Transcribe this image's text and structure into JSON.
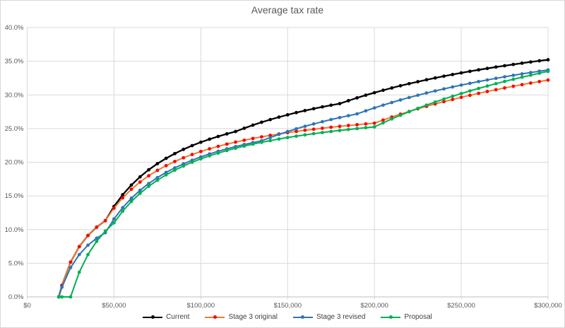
{
  "title": "Average tax rate",
  "chart_data": {
    "type": "line",
    "title": "Average tax rate",
    "xlabel": "",
    "ylabel": "",
    "xlim": [
      0,
      300000
    ],
    "ylim": [
      0,
      40
    ],
    "grid": true,
    "legend_position": "bottom",
    "y_tick_values": [
      0,
      5,
      10,
      15,
      20,
      25,
      30,
      35,
      40
    ],
    "y_ticks": [
      "0.0%",
      "5.0%",
      "10.0%",
      "15.0%",
      "20.0%",
      "25.0%",
      "30.0%",
      "35.0%",
      "40.0%"
    ],
    "x_tick_values": [
      0,
      50000,
      100000,
      150000,
      200000,
      250000,
      300000
    ],
    "x_ticks": [
      "$0",
      "$50,000",
      "$100,000",
      "$150,000",
      "$200,000",
      "$250,000",
      "$300,000"
    ],
    "colors": {
      "grid": "#d9d9d9",
      "axis": "#bfbfbf",
      "tick_text": "#595959",
      "title_text": "#595959"
    },
    "x": [
      18200,
      20000,
      25000,
      30000,
      35000,
      40000,
      45000,
      50000,
      55000,
      60000,
      65000,
      70000,
      75000,
      80000,
      85000,
      90000,
      95000,
      100000,
      105000,
      110000,
      115000,
      120000,
      125000,
      130000,
      135000,
      140000,
      145000,
      150000,
      155000,
      160000,
      165000,
      170000,
      175000,
      180000,
      185000,
      190000,
      195000,
      200000,
      205000,
      210000,
      215000,
      220000,
      225000,
      230000,
      235000,
      240000,
      245000,
      250000,
      255000,
      260000,
      265000,
      270000,
      275000,
      280000,
      285000,
      290000,
      295000,
      300000
    ],
    "series": [
      {
        "name": "Current",
        "line_color": "#000000",
        "marker_color": "#000000",
        "values": [
          0,
          1.71,
          5.17,
          7.47,
          9.12,
          10.36,
          11.32,
          13.43,
          15.17,
          16.61,
          17.83,
          18.88,
          19.79,
          20.58,
          21.28,
          21.91,
          22.47,
          22.97,
          23.42,
          23.83,
          24.21,
          24.56,
          25.05,
          25.51,
          25.94,
          26.33,
          26.7,
          27.04,
          27.37,
          27.67,
          27.95,
          28.22,
          28.47,
          28.7,
          29.14,
          29.56,
          29.96,
          30.33,
          30.69,
          31.03,
          31.36,
          31.67,
          31.96,
          32.25,
          32.52,
          32.78,
          33.03,
          33.27,
          33.5,
          33.72,
          33.93,
          34.14,
          34.33,
          34.52,
          34.71,
          34.89,
          35.06,
          35.22
        ]
      },
      {
        "name": "Stage 3 original",
        "line_color": "#ED7D31",
        "marker_color": "#FF0000",
        "values": [
          0,
          1.71,
          5.17,
          7.47,
          9.12,
          10.36,
          11.32,
          13.18,
          14.71,
          15.99,
          17.06,
          17.99,
          18.79,
          19.49,
          20.11,
          20.66,
          21.15,
          21.59,
          21.99,
          22.36,
          22.69,
          22.99,
          23.27,
          23.53,
          23.77,
          23.99,
          24.2,
          24.39,
          24.58,
          24.75,
          24.9,
          25.05,
          25.2,
          25.33,
          25.46,
          25.57,
          25.69,
          25.8,
          26.26,
          26.71,
          27.14,
          27.54,
          27.93,
          28.3,
          28.66,
          29.0,
          29.32,
          29.64,
          29.94,
          30.23,
          30.51,
          30.77,
          31.03,
          31.28,
          31.52,
          31.76,
          31.98,
          32.2
        ]
      },
      {
        "name": "Stage 3 revised",
        "line_color": "#2E75B6",
        "marker_color": "#2E75B6",
        "values": [
          0,
          1.44,
          4.35,
          6.29,
          7.68,
          8.72,
          9.53,
          11.58,
          13.25,
          14.65,
          15.83,
          16.84,
          17.72,
          18.49,
          19.16,
          19.76,
          20.3,
          20.79,
          21.23,
          21.63,
          21.99,
          22.32,
          22.63,
          22.91,
          23.18,
          23.67,
          24.13,
          24.56,
          24.96,
          25.34,
          25.69,
          26.02,
          26.34,
          26.63,
          26.91,
          27.18,
          27.63,
          28.07,
          28.48,
          28.87,
          29.25,
          29.61,
          29.95,
          30.28,
          30.59,
          30.89,
          31.18,
          31.46,
          31.72,
          31.98,
          32.22,
          32.46,
          32.69,
          32.91,
          33.12,
          33.32,
          33.52,
          33.71
        ]
      },
      {
        "name": "Proposal",
        "line_color": "#00B050",
        "marker_color": "#00B050",
        "values": [
          0,
          0,
          0,
          3.67,
          6.29,
          8.25,
          9.78,
          11.0,
          12.73,
          14.17,
          15.38,
          16.43,
          17.33,
          18.13,
          18.82,
          19.44,
          20.0,
          20.5,
          20.95,
          21.36,
          21.74,
          22.08,
          22.4,
          22.69,
          22.96,
          23.21,
          23.45,
          23.67,
          23.87,
          24.06,
          24.24,
          24.41,
          24.57,
          24.72,
          24.86,
          25.0,
          25.13,
          25.25,
          25.85,
          26.43,
          26.98,
          27.5,
          28.0,
          28.48,
          28.94,
          29.38,
          29.8,
          30.2,
          30.59,
          30.96,
          31.32,
          31.67,
          32.0,
          32.32,
          32.63,
          32.93,
          33.22,
          33.5
        ]
      }
    ]
  },
  "legend": {
    "items": [
      {
        "label": "Current"
      },
      {
        "label": "Stage 3 original"
      },
      {
        "label": "Stage 3 revised"
      },
      {
        "label": "Proposal"
      }
    ]
  }
}
